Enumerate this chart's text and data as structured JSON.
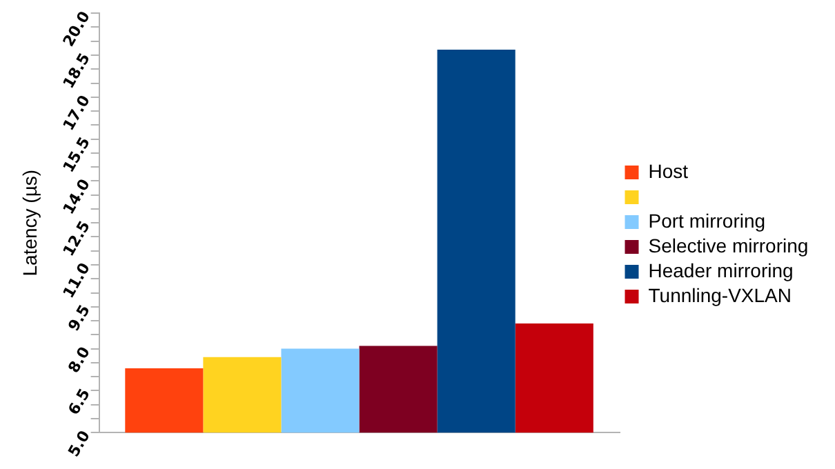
{
  "chart_data": {
    "type": "bar",
    "ylabel": "Latency (µs)",
    "categories": [
      null
    ],
    "series": [
      {
        "name": "Host",
        "color": "#ff420e",
        "values": [
          7.3
        ]
      },
      {
        "color": "#ffd320",
        "values": [
          7.7
        ]
      },
      {
        "name": "Port mirroring",
        "color": "#83caff",
        "values": [
          8.0
        ]
      },
      {
        "name": "Selective mirroring",
        "color": "#7e0021",
        "values": [
          8.1
        ]
      },
      {
        "name": "Header mirroring",
        "color": "#004586",
        "values": [
          18.7
        ]
      },
      {
        "name": "Tunnling-VXLAN",
        "color": "#c5000b",
        "values": [
          8.9
        ]
      }
    ],
    "ylim": [
      5,
      20
    ],
    "yticks": [
      {
        "value": 5,
        "label": "5.0"
      },
      {
        "value": 5.5,
        "label": null
      },
      {
        "value": 6,
        "label": null
      },
      {
        "value": 6.5,
        "label": "6.5"
      },
      {
        "value": 7,
        "label": null
      },
      {
        "value": 7.5,
        "label": null
      },
      {
        "value": 8,
        "label": "8.0"
      },
      {
        "value": 8.5,
        "label": null
      },
      {
        "value": 9,
        "label": null
      },
      {
        "value": 9.5,
        "label": "9.5"
      },
      {
        "value": 10,
        "label": null
      },
      {
        "value": 10.5,
        "label": null
      },
      {
        "value": 11,
        "label": "11.0"
      },
      {
        "value": 11.5,
        "label": null
      },
      {
        "value": 12,
        "label": null
      },
      {
        "value": 12.5,
        "label": "12.5"
      },
      {
        "value": 13,
        "label": null
      },
      {
        "value": 13.5,
        "label": null
      },
      {
        "value": 14,
        "label": "14.0"
      },
      {
        "value": 14.5,
        "label": null
      },
      {
        "value": 15,
        "label": null
      },
      {
        "value": 15.5,
        "label": "15.5"
      },
      {
        "value": 16,
        "label": null
      },
      {
        "value": 16.5,
        "label": null
      },
      {
        "value": 17,
        "label": "17.0"
      },
      {
        "value": 17.5,
        "label": null
      },
      {
        "value": 18,
        "label": null
      },
      {
        "value": 18.5,
        "label": "18.5"
      },
      {
        "value": 19,
        "label": null
      },
      {
        "value": 19.5,
        "label": null
      },
      {
        "value": 20,
        "label": "20.0"
      }
    ],
    "grid": false,
    "legend": "right"
  }
}
